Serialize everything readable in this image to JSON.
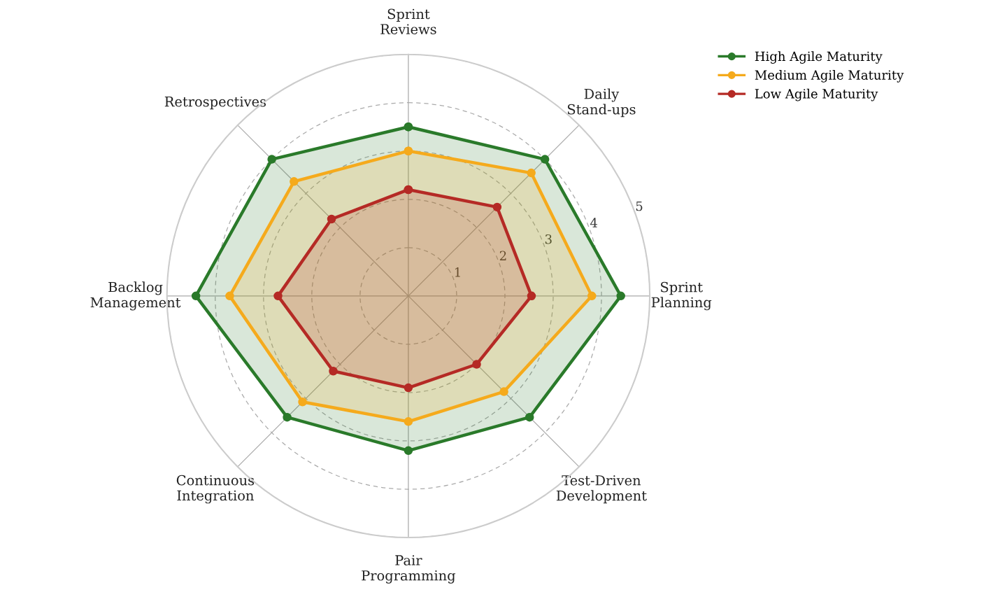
{
  "chart_data": {
    "type": "radar",
    "categories": [
      "Sprint\nReviews",
      "Daily\nStand-ups",
      "Sprint\nPlanning",
      "Test-Driven\nDevelopment",
      "Pair\nProgramming",
      "Continuous\nIntegration",
      "Backlog\nManagement",
      "Retrospectives"
    ],
    "series": [
      {
        "name": "High Agile Maturity",
        "color": "#2a7a2a",
        "values": [
          3.5,
          4.0,
          4.4,
          3.55,
          3.2,
          3.55,
          4.4,
          4.0
        ]
      },
      {
        "name": "Medium Agile Maturity",
        "color": "#f5aa1c",
        "values": [
          3.0,
          3.6,
          3.8,
          2.8,
          2.6,
          3.1,
          3.7,
          3.35
        ]
      },
      {
        "name": "Low Agile Maturity",
        "color": "#b52a25",
        "values": [
          2.2,
          2.6,
          2.55,
          2.0,
          1.9,
          2.2,
          2.7,
          2.25
        ]
      }
    ],
    "ylim": [
      0,
      5
    ],
    "yticks": [
      1,
      2,
      3,
      4,
      5
    ],
    "grid": true,
    "legend": "top right",
    "marker": "circle",
    "line_style": "solid"
  }
}
